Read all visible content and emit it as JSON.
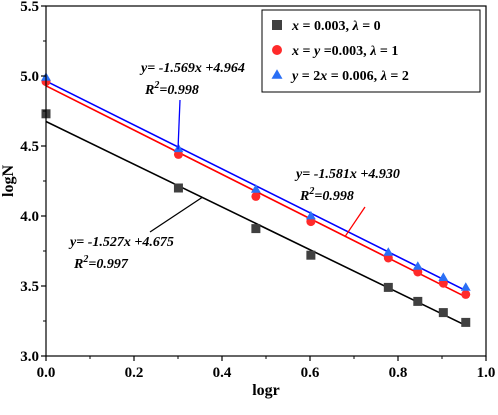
{
  "chart_data": {
    "type": "scatter",
    "xlabel": "logr",
    "ylabel": "logN",
    "xlim": [
      0.0,
      1.0
    ],
    "ylim": [
      3.0,
      5.5
    ],
    "xticks": [
      "0.0",
      "0.2",
      "0.4",
      "0.6",
      "0.8",
      "1.0"
    ],
    "yticks": [
      "3.0",
      "3.5",
      "4.0",
      "4.5",
      "5.0",
      "5.5"
    ],
    "legend_position": "top-right",
    "series": [
      {
        "name": "x = 0.003, λ = 0",
        "legend_parts": [
          "x",
          " = 0.003, ",
          "λ",
          " = 0"
        ],
        "marker": "square",
        "color": "#404040",
        "line_color": "#000000",
        "x": [
          0.0,
          0.301,
          0.477,
          0.602,
          0.778,
          0.845,
          0.903,
          0.954
        ],
        "y": [
          4.73,
          4.2,
          3.91,
          3.72,
          3.49,
          3.39,
          3.31,
          3.24
        ],
        "fit": {
          "slope": -1.527,
          "intercept": 4.675
        },
        "equation": "y= -1.527x +4.675",
        "r2_label": "R",
        "r2_value": "=0.997"
      },
      {
        "name": "x = y =0.003, λ = 1",
        "legend_parts": [
          "x",
          " = ",
          "y",
          " =0.003, ",
          "λ",
          " = 1"
        ],
        "marker": "circle",
        "color": "#ff2a2a",
        "line_color": "#ff0000",
        "x": [
          0.0,
          0.301,
          0.477,
          0.602,
          0.778,
          0.845,
          0.903,
          0.954
        ],
        "y": [
          4.96,
          4.44,
          4.14,
          3.96,
          3.7,
          3.6,
          3.52,
          3.44
        ],
        "fit": {
          "slope": -1.581,
          "intercept": 4.93
        },
        "equation": "y= -1.581x +4.930",
        "r2_label": "R",
        "r2_value": "=0.998"
      },
      {
        "name": "y = 2x = 0.006, λ = 2",
        "legend_parts": [
          "y",
          " = 2",
          "x",
          " = 0.006, ",
          "λ",
          " = 2"
        ],
        "marker": "triangle",
        "color": "#2a6ff5",
        "line_color": "#0000ff",
        "x": [
          0.0,
          0.301,
          0.477,
          0.602,
          0.778,
          0.845,
          0.903,
          0.954
        ],
        "y": [
          4.99,
          4.48,
          4.19,
          4.0,
          3.74,
          3.64,
          3.56,
          3.49
        ],
        "fit": {
          "slope": -1.569,
          "intercept": 4.964
        },
        "equation": "y= -1.569x +4.964",
        "r2_label": "R",
        "r2_value": "=0.998"
      }
    ]
  }
}
